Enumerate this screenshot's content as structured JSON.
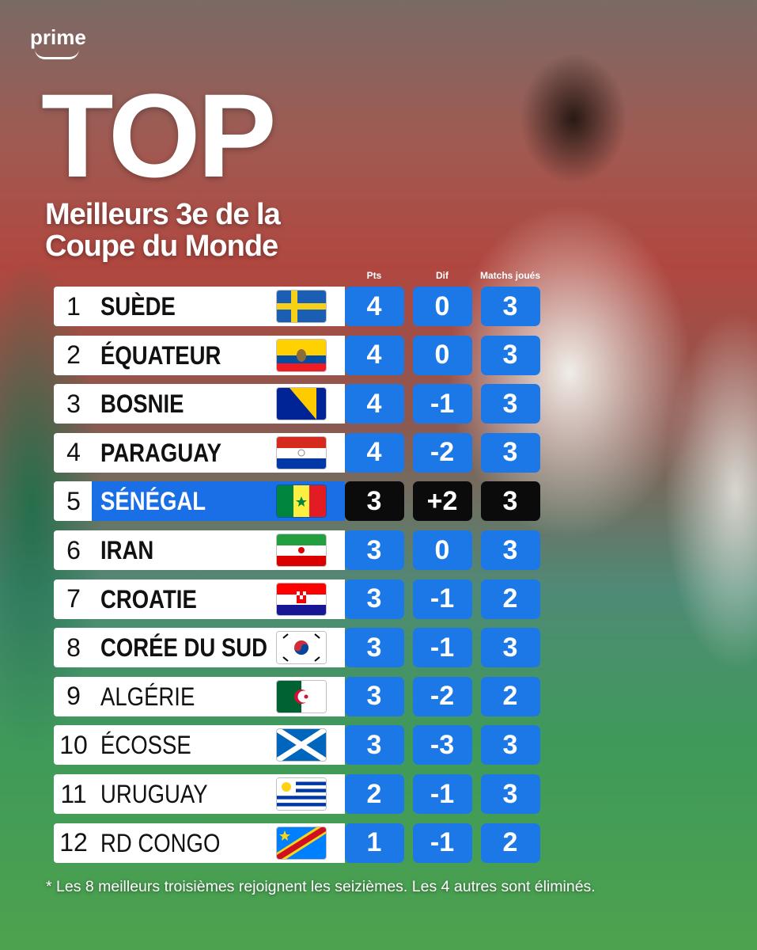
{
  "brand": "prime",
  "header": {
    "title": "TOP",
    "subtitle": [
      "Meilleurs 3e de la",
      "Coupe du Monde"
    ]
  },
  "table": {
    "columns": [
      "Pts",
      "Dif",
      "Matchs joués"
    ],
    "rows": [
      [
        "1",
        "SUÈDE",
        "4",
        "0",
        "3"
      ],
      [
        "2",
        "ÉQUATEUR",
        "4",
        "0",
        "3"
      ],
      [
        "3",
        "BOSNIE",
        "4",
        "-1",
        "3"
      ],
      [
        "4",
        "PARAGUAY",
        "4",
        "-2",
        "3"
      ],
      [
        "5",
        "SÉNÉGAL",
        "3",
        "+2",
        "3"
      ],
      [
        "6",
        "IRAN",
        "3",
        "0",
        "3"
      ],
      [
        "7",
        "CROATIE",
        "3",
        "-1",
        "2"
      ],
      [
        "8",
        "CORÉE DU SUD",
        "3",
        "-1",
        "3"
      ],
      [
        "9",
        "ALGÉRIE",
        "3",
        "-2",
        "2"
      ],
      [
        "10",
        "ÉCOSSE",
        "3",
        "-3",
        "3"
      ],
      [
        "11",
        "URUGUAY",
        "2",
        "-1",
        "3"
      ],
      [
        "12",
        "RD CONGO",
        "1",
        "-1",
        "2"
      ]
    ]
  },
  "footnote": "* Les 8 meilleurs troisièmes rejoignent les seizièmes. Les 4 autres sont éliminés."
}
